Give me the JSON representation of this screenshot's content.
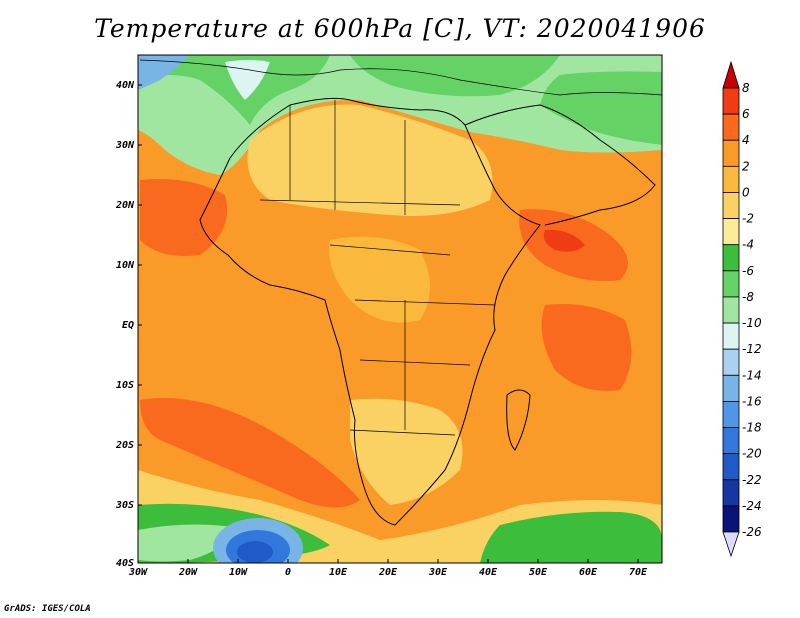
{
  "title": "Temperature at 600hPa [C], VT: 2020041906",
  "credit": "GrADS: IGES/COLA",
  "map": {
    "lat_labels": [
      "40N",
      "30N",
      "20N",
      "10N",
      "EQ",
      "10S",
      "20S",
      "30S",
      "40S"
    ],
    "lon_labels": [
      "30W",
      "20W",
      "10W",
      "0",
      "10E",
      "20E",
      "30E",
      "40E",
      "50E",
      "60E",
      "70E"
    ]
  },
  "colorbar": {
    "labels": [
      "8",
      "6",
      "4",
      "2",
      "0",
      "-2",
      "-4",
      "-6",
      "-8",
      "-10",
      "-12",
      "-14",
      "-16",
      "-18",
      "-20",
      "-22",
      "-24",
      "-26"
    ],
    "colors": {
      "above_8": "#c80000",
      "6_to_8": "#f03c14",
      "4_to_6": "#fa6a1e",
      "2_to_4": "#fa9a28",
      "0_to_2": "#fab83c",
      "-2_to_0": "#fad264",
      "-4_to_-2": "#faeb96",
      "-6_to_-4": "#3cbe3c",
      "-8_to_-6": "#64d264",
      "-10_to_-8": "#a0e6a0",
      "-12_to_-10": "#dcf5f0",
      "-14_to_-12": "#aad2f0",
      "-16_to_-14": "#78b4e6",
      "-18_to_-16": "#5096e6",
      "-20_to_-18": "#3278dc",
      "-22_to_-20": "#1e5ac8",
      "-24_to_-22": "#1438a0",
      "-26_to_-24": "#0a1478",
      "below_-26": "#dcdcfa"
    }
  }
}
